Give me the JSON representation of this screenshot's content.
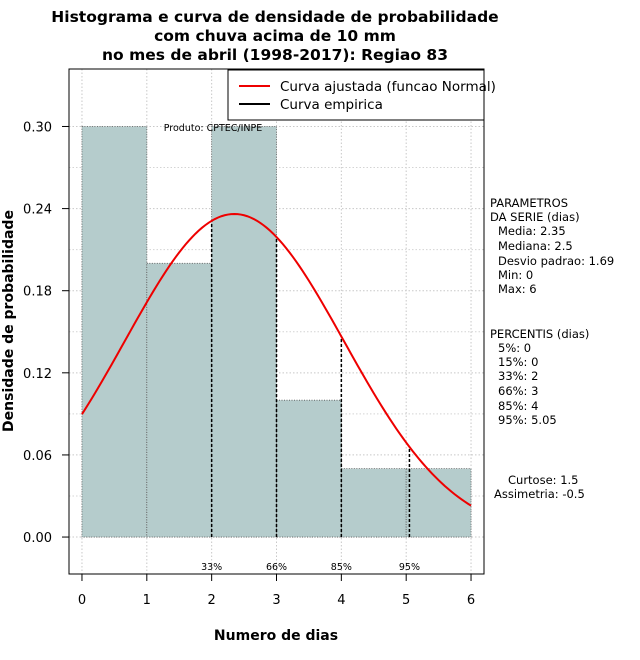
{
  "chart_data": {
    "type": "bar",
    "title_lines": [
      "Histograma e curva de densidade de probabilidade",
      "com chuva acima de 10 mm",
      "no mes de abril (1998-2017): Regiao 83"
    ],
    "xlabel": "Numero de dias",
    "ylabel": "Densidade de probabilidade",
    "xlim": [
      -0.2,
      6.2
    ],
    "ylim": [
      -0.027,
      0.342
    ],
    "x_ticks": [
      "0",
      "1",
      "2",
      "3",
      "4",
      "5",
      "6"
    ],
    "y_ticks": [
      "0.00",
      "0.06",
      "0.12",
      "0.18",
      "0.24",
      "0.30"
    ],
    "bins": [
      {
        "from": 0,
        "to": 1,
        "value": 0.3
      },
      {
        "from": 1,
        "to": 2,
        "value": 0.2
      },
      {
        "from": 2,
        "to": 3,
        "value": 0.3
      },
      {
        "from": 3,
        "to": 4,
        "value": 0.1
      },
      {
        "from": 4,
        "to": 5,
        "value": 0.05
      },
      {
        "from": 5,
        "to": 6,
        "value": 0.05
      }
    ],
    "bar_color": "#b5cccc",
    "curve": {
      "name": "Curva ajustada (funcao Normal)",
      "distribution": "normal",
      "mean": 2.35,
      "sd": 1.69,
      "color": "#ee0000"
    },
    "empirical_name": "Curva empirica",
    "percentile_lines": [
      {
        "label": "33%",
        "x": 2
      },
      {
        "label": "66%",
        "x": 3
      },
      {
        "label": "85%",
        "x": 4
      },
      {
        "label": "95%",
        "x": 5.05
      }
    ],
    "watermark": "Produto: CPTEC/INPE",
    "grid": true,
    "legend_position": "top-right"
  },
  "side_panel": {
    "params_title_1": "PARAMETROS",
    "params_title_2": "DA SERIE (dias)",
    "media": "Media: 2.35",
    "mediana": "Mediana: 2.5",
    "desvio": "Desvio padrao: 1.69",
    "min": "Min: 0",
    "max": "Max: 6",
    "percentis_title": "PERCENTIS (dias)",
    "p5": "5%: 0",
    "p15": "15%: 0",
    "p33": "33%: 2",
    "p66": "66%: 3",
    "p85": "85%: 4",
    "p95": "95%: 5.05",
    "curtose": "Curtose: 1.5",
    "assimetria": "Assimetria: -0.5"
  }
}
